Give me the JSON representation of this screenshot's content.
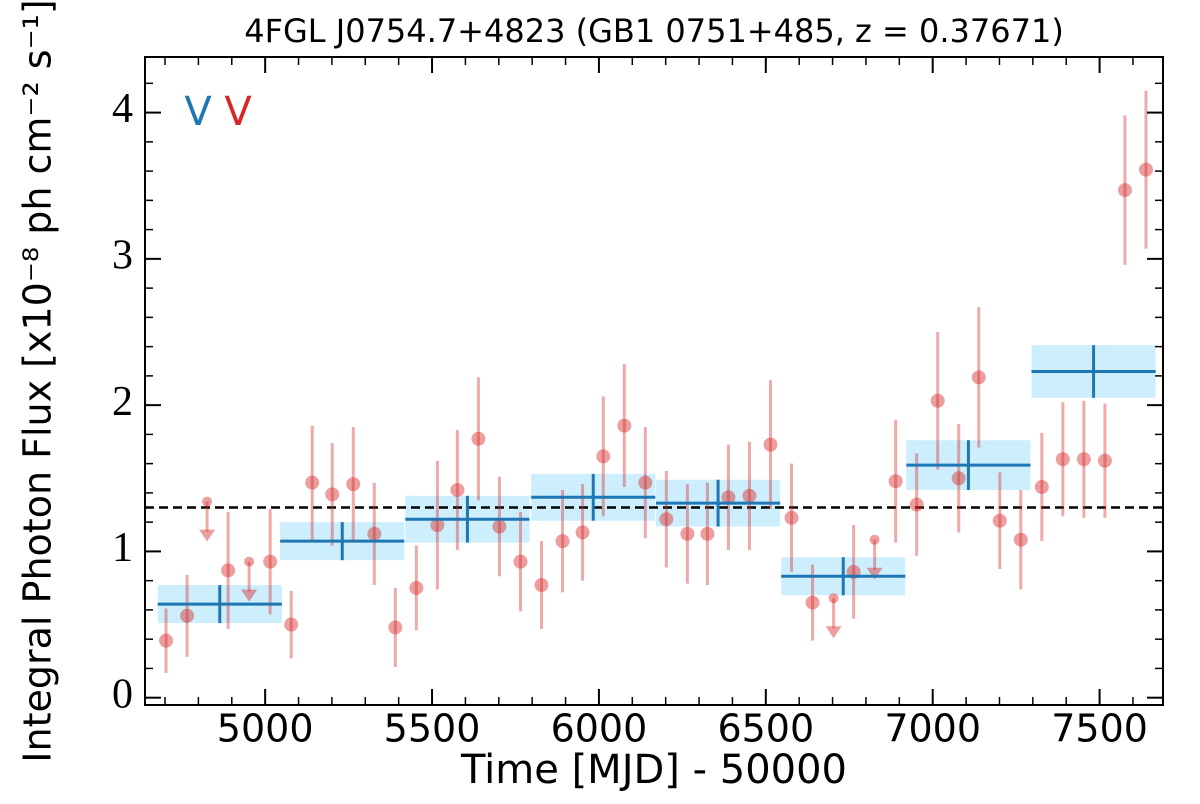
{
  "chart_data": {
    "type": "lightcurve",
    "title": "4FGL J0754.7+4823 (GB1 0751+485, z = 0.37671)",
    "xlabel": "Time [MJD] - 50000",
    "ylabel": "Integral Photon Flux [x10⁻⁸ ph cm⁻² s⁻¹]",
    "xlim": [
      4640,
      7690
    ],
    "ylim": [
      -0.05,
      4.38
    ],
    "xticks": [
      5000,
      5500,
      6000,
      6500,
      7000,
      7500
    ],
    "yticks": [
      0,
      1,
      2,
      3,
      4
    ],
    "xminorticks": [
      4700,
      4800,
      4900,
      5100,
      5200,
      5300,
      5400,
      5600,
      5700,
      5800,
      5900,
      6100,
      6200,
      6300,
      6400,
      6600,
      6700,
      6800,
      6900,
      7100,
      7200,
      7300,
      7400,
      7600
    ],
    "yminorticks": [
      0.2,
      0.4,
      0.6,
      0.8,
      1.2,
      1.4,
      1.6,
      1.8,
      2.2,
      2.4,
      2.6,
      2.8,
      3.2,
      3.4,
      3.6,
      3.8,
      4.2
    ],
    "reference_line": 1.3,
    "annotations": [
      {
        "text": "V",
        "color": "#1f77b4"
      },
      {
        "text": "V",
        "color": "#d62728"
      }
    ],
    "series": [
      {
        "color": "#1f77b4",
        "band_color": "#cdeefc",
        "x": [
          4864,
          5231,
          5606,
          5983,
          6357,
          6732,
          7107,
          7482
        ],
        "x_errors": [
          186,
          186,
          186,
          186,
          186,
          186,
          186,
          186
        ],
        "values": [
          0.64,
          1.07,
          1.22,
          1.37,
          1.33,
          0.83,
          1.59,
          2.23
        ],
        "errors": [
          0.13,
          0.13,
          0.16,
          0.16,
          0.16,
          0.13,
          0.17,
          0.18
        ]
      },
      {
        "color": "#d62728",
        "x": [
          4703,
          4766,
          4889,
          5015,
          5078,
          5141,
          5201,
          5264,
          5327,
          5390,
          5453,
          5516,
          5576,
          5639,
          5702,
          5765,
          5828,
          5891,
          5951,
          6013,
          6076,
          6139,
          6202,
          6265,
          6325,
          6388,
          6451,
          6514,
          6577,
          6640,
          6763,
          6889,
          6952,
          7015,
          7078,
          7138,
          7201,
          7264,
          7327,
          7390,
          7453,
          7516,
          7576,
          7639
        ],
        "values": [
          0.39,
          0.56,
          0.87,
          0.93,
          0.5,
          1.47,
          1.39,
          1.46,
          1.12,
          0.48,
          0.75,
          1.18,
          1.42,
          1.77,
          1.17,
          0.93,
          0.77,
          1.07,
          1.13,
          1.65,
          1.86,
          1.47,
          1.22,
          1.12,
          1.12,
          1.37,
          1.38,
          1.73,
          1.23,
          0.65,
          0.86,
          1.48,
          1.32,
          2.03,
          1.5,
          2.19,
          1.21,
          1.08,
          1.44,
          1.63,
          1.63,
          1.62,
          3.47,
          3.61
        ],
        "errors": [
          0.22,
          0.28,
          0.4,
          0.36,
          0.23,
          0.39,
          0.35,
          0.39,
          0.35,
          0.27,
          0.29,
          0.44,
          0.41,
          0.42,
          0.34,
          0.34,
          0.3,
          0.35,
          0.33,
          0.41,
          0.42,
          0.38,
          0.33,
          0.34,
          0.35,
          0.36,
          0.37,
          0.44,
          0.37,
          0.26,
          0.32,
          0.42,
          0.35,
          0.47,
          0.37,
          0.48,
          0.33,
          0.34,
          0.37,
          0.39,
          0.4,
          0.39,
          0.51,
          0.54
        ]
      },
      {
        "color": "#d62728",
        "upper_limit": true,
        "x": [
          4826,
          4952,
          6703,
          6826
        ],
        "values": [
          1.34,
          0.93,
          0.68,
          1.08
        ]
      }
    ]
  }
}
